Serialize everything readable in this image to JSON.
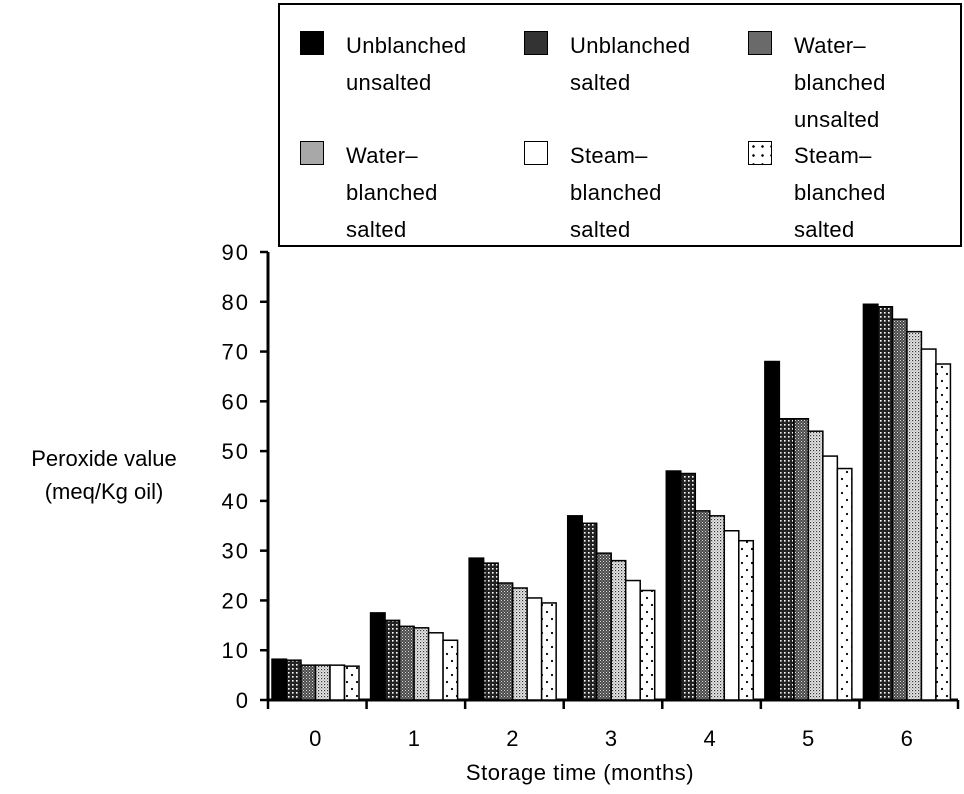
{
  "chart_data": {
    "type": "bar",
    "xlabel": "Storage time (months)",
    "ylabel": "Peroxide value (meq/Kg oil)",
    "ylim": [
      0,
      90
    ],
    "yticks": [
      "0",
      "10",
      "20",
      "30",
      "40",
      "50",
      "60",
      "70",
      "80",
      "90"
    ],
    "categories": [
      "0",
      "1",
      "2",
      "3",
      "4",
      "5",
      "6"
    ],
    "legend_placement": "top",
    "grid": false,
    "series": [
      {
        "name": "Unblanched unsalted",
        "values": [
          8.2,
          17.5,
          28.5,
          37,
          46,
          68,
          79.5
        ]
      },
      {
        "name": "Unblanched salted",
        "values": [
          8,
          16,
          27.5,
          35.5,
          45.5,
          56.5,
          79
        ]
      },
      {
        "name": "Water-blanched unsalted",
        "values": [
          7,
          14.8,
          23.5,
          29.5,
          38,
          56.5,
          76.5
        ]
      },
      {
        "name": "Water-blanched salted",
        "values": [
          7,
          14.5,
          22.5,
          28,
          37,
          54,
          74
        ]
      },
      {
        "name": "Steam-blanched salted",
        "values": [
          7,
          13.5,
          20.5,
          24,
          34,
          49,
          70.5
        ]
      },
      {
        "name": "Steam-blanched salted",
        "values": [
          6.8,
          12,
          19.5,
          22,
          32,
          46.5,
          67.5
        ]
      }
    ]
  },
  "legend": [
    {
      "label": "Unblanched unsalted",
      "pattern": "solid",
      "color": "#000000"
    },
    {
      "label": "Unblanched salted",
      "pattern": "grid-dark",
      "color": "#333333"
    },
    {
      "label": "Water-blanched unsalted",
      "pattern": "stipple-dark",
      "color": "#555555"
    },
    {
      "label": "Water-blanched salted",
      "pattern": "stipple-light",
      "color": "#9a9a9a"
    },
    {
      "label": "Steam-blanched salted",
      "pattern": "white",
      "color": "#ffffff"
    },
    {
      "label": "Steam-blanched salted",
      "pattern": "sparse-dots",
      "color": "#ffffff"
    }
  ]
}
